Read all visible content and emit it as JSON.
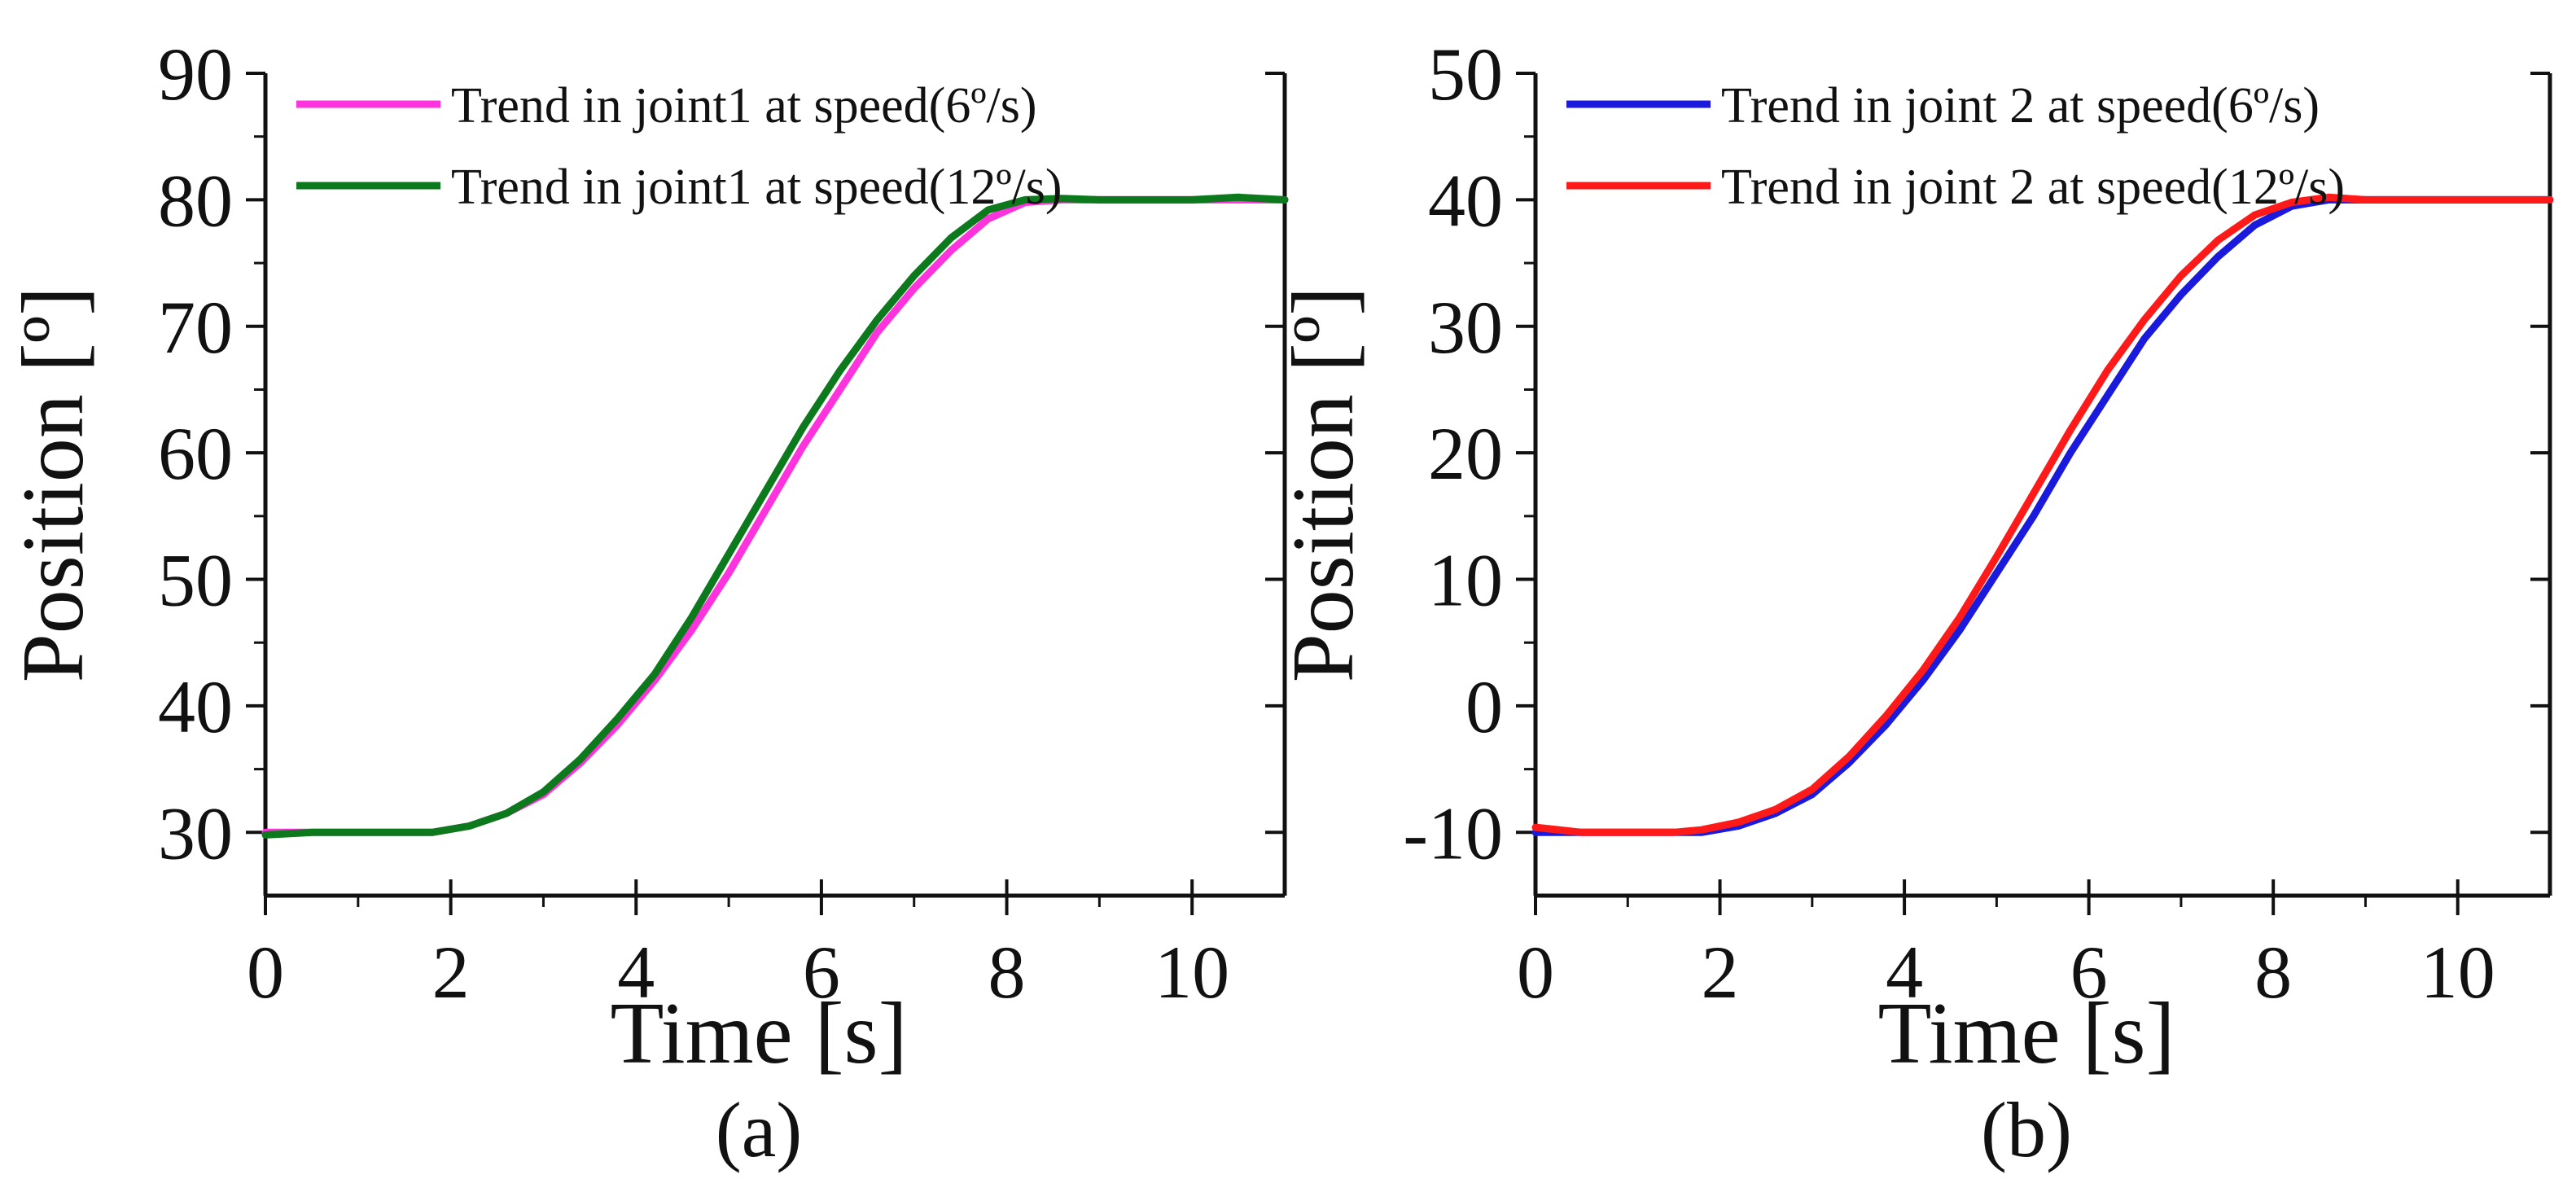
{
  "chart_data": [
    {
      "type": "line",
      "panel_label": "(a)",
      "xlabel": "Time [s]",
      "ylabel": "Position [º]",
      "xlim": [
        0,
        11
      ],
      "ylim": [
        25,
        90
      ],
      "x_ticks": [
        0,
        2,
        4,
        6,
        8,
        10
      ],
      "y_ticks": [
        30,
        40,
        50,
        60,
        70,
        80,
        90
      ],
      "grid": false,
      "legend_position": "top-left",
      "series": [
        {
          "name": "Trend in joint1 at  speed(6º/s)",
          "color": "#ff33dd",
          "x": [
            0,
            0.5,
            1,
            1.5,
            1.8,
            2.2,
            2.6,
            3,
            3.4,
            3.8,
            4.2,
            4.6,
            5,
            5.4,
            5.8,
            6.2,
            6.6,
            7,
            7.4,
            7.8,
            8.2,
            8.6,
            9,
            9.5,
            10,
            10.5,
            11
          ],
          "y": [
            30,
            30,
            30,
            30,
            30,
            30.5,
            31.5,
            33,
            35.5,
            38.5,
            42,
            46,
            50.5,
            55.5,
            60.5,
            65,
            69.5,
            73,
            76,
            78.5,
            79.8,
            80,
            80,
            80,
            80,
            80,
            80
          ]
        },
        {
          "name": "Trend in joint1 at  speed(12º/s)",
          "color": "#0c7a1c",
          "x": [
            0,
            0.5,
            1,
            1.5,
            1.8,
            2.2,
            2.6,
            3,
            3.4,
            3.8,
            4.2,
            4.6,
            5,
            5.4,
            5.8,
            6.2,
            6.6,
            7,
            7.4,
            7.8,
            8.2,
            8.6,
            9,
            9.5,
            10,
            10.5,
            11
          ],
          "y": [
            29.8,
            30,
            30,
            30,
            30,
            30.5,
            31.5,
            33.2,
            35.8,
            39,
            42.5,
            47,
            52,
            57,
            62,
            66.5,
            70.5,
            74,
            77,
            79.2,
            80,
            80.1,
            80,
            80,
            80,
            80.2,
            80
          ]
        }
      ]
    },
    {
      "type": "line",
      "panel_label": "(b)",
      "xlabel": "Time [s]",
      "ylabel": "Position [º]",
      "xlim": [
        0,
        11
      ],
      "ylim": [
        -15,
        50
      ],
      "x_ticks": [
        0,
        2,
        4,
        6,
        8,
        10
      ],
      "y_ticks": [
        -10,
        0,
        10,
        20,
        30,
        40,
        50
      ],
      "grid": false,
      "legend_position": "top-left",
      "series": [
        {
          "name": "Trend in  joint 2 at  speed(6º/s)",
          "color": "#1a1adc",
          "x": [
            0,
            0.5,
            1,
            1.5,
            1.8,
            2.2,
            2.6,
            3,
            3.4,
            3.8,
            4.2,
            4.6,
            5,
            5.4,
            5.8,
            6.2,
            6.6,
            7,
            7.4,
            7.8,
            8.2,
            8.6,
            9,
            9.5,
            10,
            10.5,
            11
          ],
          "y": [
            -10,
            -10,
            -10,
            -10,
            -10,
            -9.5,
            -8.5,
            -7,
            -4.5,
            -1.5,
            2,
            6,
            10.5,
            15,
            20,
            24.5,
            29,
            32.5,
            35.5,
            38,
            39.5,
            40,
            40,
            40,
            40,
            40,
            40
          ]
        },
        {
          "name": "Trend in joint 2 at  speed(12º/s)",
          "color": "#ff1a1a",
          "x": [
            0,
            0.5,
            1,
            1.5,
            1.8,
            2.2,
            2.6,
            3,
            3.4,
            3.8,
            4.2,
            4.6,
            5,
            5.4,
            5.8,
            6.2,
            6.6,
            7,
            7.4,
            7.8,
            8.2,
            8.6,
            9,
            9.5,
            10,
            10.5,
            11
          ],
          "y": [
            -9.6,
            -10,
            -10,
            -10,
            -9.8,
            -9.2,
            -8.2,
            -6.6,
            -4,
            -0.8,
            2.8,
            7,
            11.8,
            16.8,
            21.8,
            26.5,
            30.5,
            34,
            36.8,
            38.8,
            39.8,
            40.2,
            40,
            40,
            40,
            40,
            40
          ]
        }
      ]
    }
  ]
}
